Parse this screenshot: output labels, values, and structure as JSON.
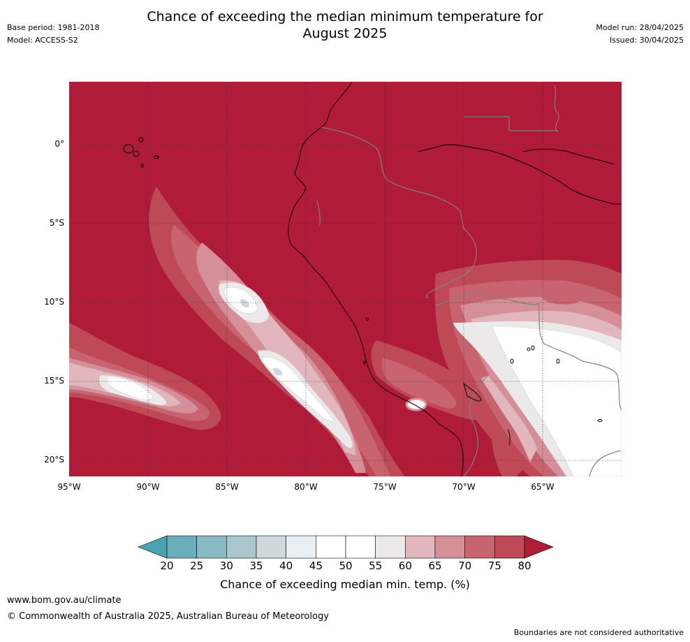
{
  "meta_left": {
    "base_period": "Base period: 1981-2018",
    "model": "Model: ACCESS-S2"
  },
  "meta_right": {
    "model_run": "Model run: 28/04/2025",
    "issued": "Issued: 30/04/2025"
  },
  "title": {
    "line1": "Chance of exceeding the median minimum temperature for",
    "line2": "August 2025"
  },
  "map": {
    "lat_labels": [
      "0°",
      "5°S",
      "10°S",
      "15°S",
      "20°S"
    ],
    "lon_labels": [
      "95°W",
      "90°W",
      "85°W",
      "80°W",
      "75°W",
      "70°W",
      "65°W"
    ],
    "background_color": "#b01c38"
  },
  "colorbar": {
    "title": "Chance of exceeding median min. temp. (%)",
    "ticks": [
      "20",
      "25",
      "30",
      "35",
      "40",
      "45",
      "50",
      "55",
      "60",
      "65",
      "70",
      "75",
      "80"
    ],
    "colors": [
      "#6aaebb",
      "#89b9c3",
      "#a9c8cd",
      "#cfd8db",
      "#e9eff2",
      "#ffffff",
      "#ffffff",
      "#ebe9e9",
      "#e1b7bd",
      "#d48f99",
      "#c86470",
      "#bf4a57"
    ],
    "low_extend_color": "#4aa3b1",
    "high_extend_color": "#b01c38"
  },
  "footer": {
    "url": "www.bom.gov.au/climate",
    "copyright": "© Commonwealth of Australia 2025, Australian Bureau of Meteorology",
    "disclaimer": "Boundaries are not considered authoritative"
  }
}
